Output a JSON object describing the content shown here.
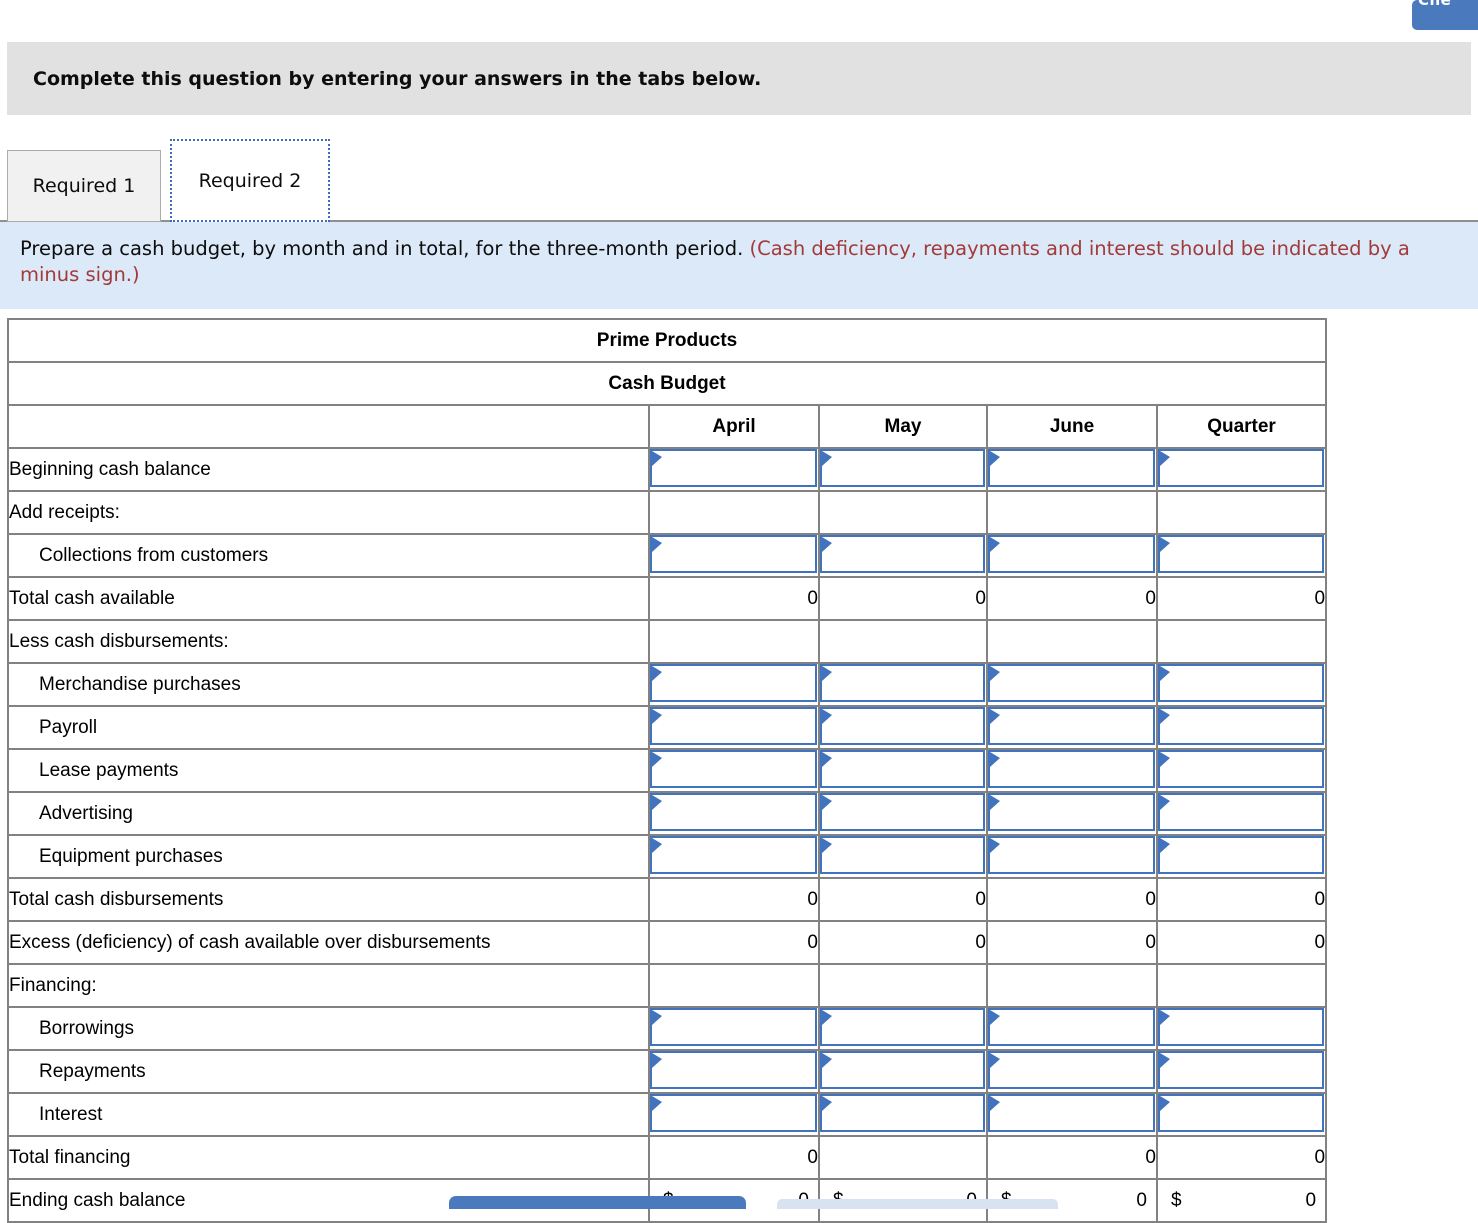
{
  "header": {
    "check_button_fragment": "Che"
  },
  "banner": "Complete this question by entering your answers in the tabs below.",
  "tabs": {
    "tab1": "Required 1",
    "tab2": "Required 2",
    "active": "Required 2"
  },
  "instruction": {
    "black": "Prepare a cash budget, by month and in total, for the three-month period.",
    "red": "(Cash deficiency, repayments and interest should be indicated by a minus sign.)"
  },
  "table": {
    "title": "Prime Products",
    "subtitle": "Cash Budget",
    "columns": [
      "April",
      "May",
      "June",
      "Quarter"
    ],
    "rows": [
      {
        "label": "Beginning cash balance",
        "indent": 0,
        "type": "inputs",
        "values": [
          "",
          "",
          "",
          ""
        ]
      },
      {
        "label": "Add receipts:",
        "indent": 0,
        "type": "blank",
        "values": [
          "",
          "",
          "",
          ""
        ]
      },
      {
        "label": "Collections from customers",
        "indent": 1,
        "type": "inputs",
        "values": [
          "",
          "",
          "",
          ""
        ]
      },
      {
        "label": "Total cash available",
        "indent": 0,
        "type": "total",
        "values": [
          "0",
          "0",
          "0",
          "0"
        ]
      },
      {
        "label": "Less cash disbursements:",
        "indent": 0,
        "type": "blank",
        "values": [
          "",
          "",
          "",
          ""
        ]
      },
      {
        "label": "Merchandise purchases",
        "indent": 1,
        "type": "inputs",
        "values": [
          "",
          "",
          "",
          ""
        ]
      },
      {
        "label": "Payroll",
        "indent": 1,
        "type": "inputs",
        "values": [
          "",
          "",
          "",
          ""
        ]
      },
      {
        "label": "Lease payments",
        "indent": 1,
        "type": "inputs",
        "values": [
          "",
          "",
          "",
          ""
        ]
      },
      {
        "label": "Advertising",
        "indent": 1,
        "type": "inputs",
        "values": [
          "",
          "",
          "",
          ""
        ]
      },
      {
        "label": "Equipment purchases",
        "indent": 1,
        "type": "inputs",
        "values": [
          "",
          "",
          "",
          ""
        ]
      },
      {
        "label": "Total cash disbursements",
        "indent": 0,
        "type": "total",
        "values": [
          "0",
          "0",
          "0",
          "0"
        ]
      },
      {
        "label": "Excess (deficiency) of cash available over disbursements",
        "indent": 0,
        "type": "total",
        "values": [
          "0",
          "0",
          "0",
          "0"
        ]
      },
      {
        "label": "Financing:",
        "indent": 0,
        "type": "blank",
        "values": [
          "",
          "",
          "",
          ""
        ]
      },
      {
        "label": "Borrowings",
        "indent": 1,
        "type": "inputs",
        "values": [
          "",
          "",
          "",
          ""
        ]
      },
      {
        "label": "Repayments",
        "indent": 1,
        "type": "inputs",
        "values": [
          "",
          "",
          "",
          ""
        ]
      },
      {
        "label": "Interest",
        "indent": 1,
        "type": "inputs",
        "values": [
          "",
          "",
          "",
          ""
        ]
      },
      {
        "label": "Total financing",
        "indent": 0,
        "type": "total",
        "values": [
          "0",
          "",
          "0",
          "0"
        ]
      },
      {
        "label": "Ending cash balance",
        "indent": 0,
        "type": "currency",
        "currency_symbol": "$",
        "values": [
          "0",
          "0",
          "0",
          "0"
        ],
        "border_bottom": "double"
      }
    ]
  },
  "colors": {
    "table_header_blue": "#8aace0",
    "input_border_blue": "#4173be",
    "instruction_panel_blue": "#dbe9f8",
    "alert_red": "#a33a3a",
    "banner_gray": "#e1e1e1",
    "accent_button_blue": "#4b79be"
  }
}
